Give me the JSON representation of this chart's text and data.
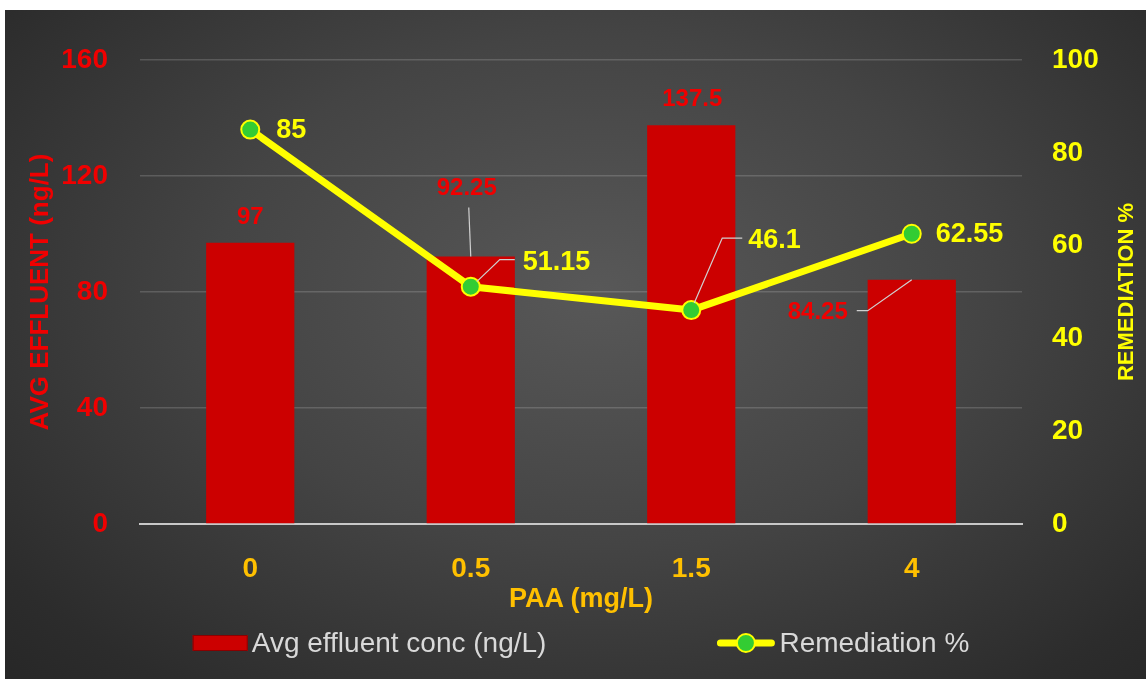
{
  "chart_data": {
    "type": "bar",
    "categories": [
      "0",
      "0.5",
      "1.5",
      "4"
    ],
    "xlabel": "PAA (mg/L)",
    "ylabel": "AVG EFFLUENT (ng/L)",
    "y2label": "REMEDIATION %",
    "series": [
      {
        "name": "Avg effluent conc (ng/L)",
        "color": "#cc0000",
        "values": [
          97,
          92.25,
          137.5,
          84.25
        ]
      },
      {
        "name": "Remediation %",
        "type": "line",
        "axis": "y2",
        "color": "#ffff00",
        "colors": [
          "#33cc33",
          "#33cc33",
          "#33cc33",
          "#33cc33"
        ],
        "values": [
          85,
          51.15,
          46.1,
          62.55
        ]
      }
    ],
    "ylim": [
      0,
      160
    ],
    "yticks": [
      0,
      40,
      80,
      120,
      160
    ],
    "y2lim": [
      0,
      100
    ],
    "y2ticks": [
      0,
      20,
      40,
      60,
      80,
      100
    ],
    "grid": "y",
    "legend": "bottom",
    "marker": "circle",
    "data_labels": true
  }
}
